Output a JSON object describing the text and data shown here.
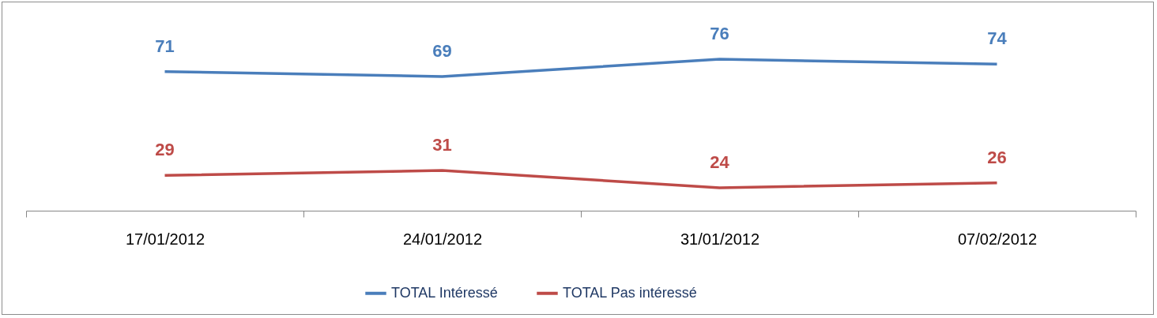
{
  "chart_data": {
    "type": "line",
    "categories": [
      "17/01/2012",
      "24/01/2012",
      "31/01/2012",
      "07/02/2012"
    ],
    "series": [
      {
        "name": "TOTAL Intéressé",
        "color": "#4a7ebb",
        "values": [
          71,
          69,
          76,
          74
        ]
      },
      {
        "name": "TOTAL Pas intéressé",
        "color": "#be4b48",
        "values": [
          29,
          31,
          24,
          26
        ]
      }
    ],
    "data_labels": true,
    "legend": "bottom",
    "grid": false,
    "marker": "none",
    "line_style": "solid"
  }
}
